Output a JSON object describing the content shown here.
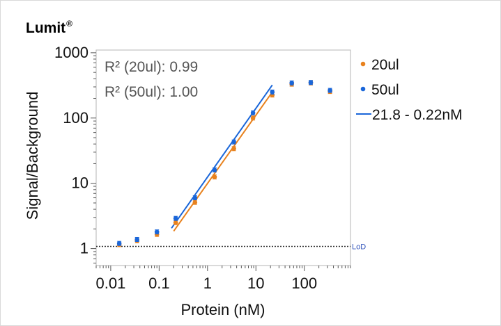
{
  "brand": {
    "name": "Lumit",
    "mark": "®"
  },
  "chart_data": {
    "type": "scatter",
    "title": "",
    "xlabel": "Protein (nM)",
    "ylabel": "Signal/Background",
    "xscale": "log",
    "yscale": "log",
    "xlim": [
      0.005,
      900
    ],
    "ylim": [
      0.55,
      1100
    ],
    "x_ticks": [
      0.01,
      0.1,
      1,
      10,
      100
    ],
    "x_tick_labels": [
      "0.01",
      "0.1",
      "1",
      "10",
      "100"
    ],
    "y_ticks": [
      1,
      10,
      100,
      1000
    ],
    "y_tick_labels": [
      "1",
      "10",
      "100",
      "1000"
    ],
    "annotations": [
      "R² (20ul): 0.99",
      "R² (50ul): 1.00"
    ],
    "reference_line": {
      "label": "LoD",
      "y": 1.08
    },
    "series": [
      {
        "name": "20ul",
        "color": "#e8821e",
        "x": [
          0.015,
          0.035,
          0.09,
          0.22,
          0.55,
          1.4,
          3.5,
          8.7,
          21.8,
          55,
          136,
          340
        ],
        "y": [
          1.15,
          1.32,
          1.65,
          2.5,
          5.1,
          12.5,
          34,
          100,
          225,
          330,
          345,
          255
        ]
      },
      {
        "name": "50ul",
        "color": "#1a66d9",
        "x": [
          0.015,
          0.035,
          0.09,
          0.22,
          0.55,
          1.4,
          3.5,
          8.7,
          21.8,
          55,
          136,
          340
        ],
        "y": [
          1.2,
          1.38,
          1.8,
          2.9,
          6.0,
          16,
          43,
          120,
          250,
          345,
          350,
          265
        ]
      }
    ],
    "fit_lines": [
      {
        "series": "20ul",
        "color": "#e8821e",
        "x": [
          0.2,
          21.8
        ],
        "y": [
          1.85,
          250
        ]
      },
      {
        "series": "50ul",
        "color": "#1a66d9",
        "x": [
          0.18,
          21.8
        ],
        "y": [
          2.05,
          320
        ]
      }
    ],
    "legend": {
      "position": "right",
      "entries": [
        {
          "label": "20ul",
          "marker": "dot",
          "color": "#e8821e"
        },
        {
          "label": "50ul",
          "marker": "dot",
          "color": "#1a66d9"
        },
        {
          "label": "21.8 - 0.22nM",
          "marker": "line",
          "color": "#1a66d9"
        }
      ]
    }
  }
}
